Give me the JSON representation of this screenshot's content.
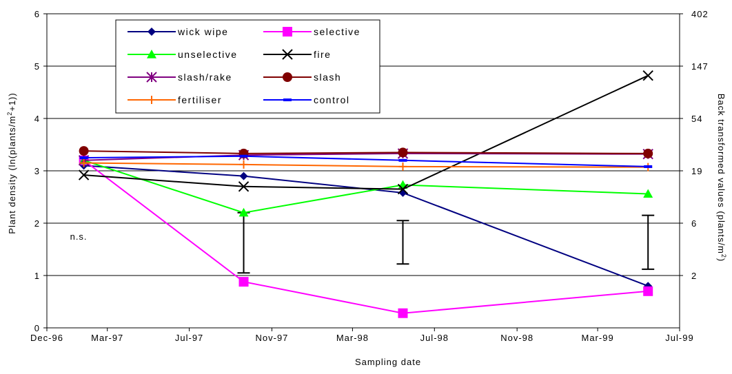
{
  "chart_data": {
    "type": "line",
    "title": "",
    "xlabel": "Sampling date",
    "ylabel": "Plant density (ln(plants/m²+1))",
    "ylabel_parts": {
      "pre": "Plant density (ln(plants/m",
      "sup": "2",
      "post": "+1))"
    },
    "y2label": "Back transformed values (plants/m²)",
    "y2label_parts": {
      "pre": "Back transformed values (plants/m",
      "sup": "2",
      "post": ")"
    },
    "xlim": [
      "1996-12-01",
      "1999-07-01"
    ],
    "ylim": [
      0,
      6
    ],
    "x_ticks": [
      "1996-12-01",
      "1997-03-01",
      "1997-07-01",
      "1997-11-01",
      "1998-03-01",
      "1998-07-01",
      "1998-11-01",
      "1999-03-01",
      "1999-07-01"
    ],
    "x_tick_labels": [
      "Dec-96",
      "Mar-97",
      "Jul-97",
      "Nov-97",
      "Mar-98",
      "Jul-98",
      "Nov-98",
      "Mar-99",
      "Jul-99"
    ],
    "y_ticks": [
      0,
      1,
      2,
      3,
      4,
      5,
      6
    ],
    "y2_ticks": [
      {
        "value": 1,
        "label": "2"
      },
      {
        "value": 2,
        "label": "6"
      },
      {
        "value": 3,
        "label": "19"
      },
      {
        "value": 4,
        "label": "54"
      },
      {
        "value": 5,
        "label": "147"
      },
      {
        "value": 6,
        "label": "402"
      }
    ],
    "grid": "horizontal",
    "legend_position": "top-left",
    "x": [
      "1997-01-25",
      "1997-09-20",
      "1998-05-15",
      "1999-05-15"
    ],
    "series": [
      {
        "name": "wick wipe",
        "color": "#000080",
        "marker": "diamond",
        "values": [
          3.1,
          2.9,
          2.58,
          0.8
        ]
      },
      {
        "name": "selective",
        "color": "#ff00ff",
        "marker": "square",
        "values": [
          3.2,
          0.88,
          0.28,
          0.7
        ]
      },
      {
        "name": "unselective",
        "color": "#00ff00",
        "marker": "triangle",
        "values": [
          3.2,
          2.2,
          2.73,
          2.56
        ]
      },
      {
        "name": "fire",
        "color": "#000000",
        "marker": "x",
        "values": [
          2.92,
          2.7,
          2.65,
          4.82
        ]
      },
      {
        "name": "slash/rake",
        "color": "#800080",
        "marker": "asterisk",
        "values": [
          3.2,
          3.3,
          3.33,
          3.32
        ]
      },
      {
        "name": "slash",
        "color": "#800000",
        "marker": "circle",
        "values": [
          3.38,
          3.33,
          3.35,
          3.33
        ]
      },
      {
        "name": "fertiliser",
        "color": "#ff6600",
        "marker": "plus",
        "values": [
          3.15,
          3.12,
          3.08,
          3.07
        ]
      },
      {
        "name": "control",
        "color": "#0000ff",
        "marker": "dash",
        "values": [
          3.25,
          3.28,
          3.2,
          3.08
        ]
      }
    ],
    "error_bars": [
      {
        "x": "1997-09-20",
        "low": 1.05,
        "high": 2.2
      },
      {
        "x": "1998-05-15",
        "low": 1.22,
        "high": 2.05
      },
      {
        "x": "1999-05-15",
        "low": 1.12,
        "high": 2.15
      }
    ],
    "annotations": [
      {
        "text": "n.s.",
        "x": "1997-01-25",
        "y": 1.75
      }
    ]
  }
}
